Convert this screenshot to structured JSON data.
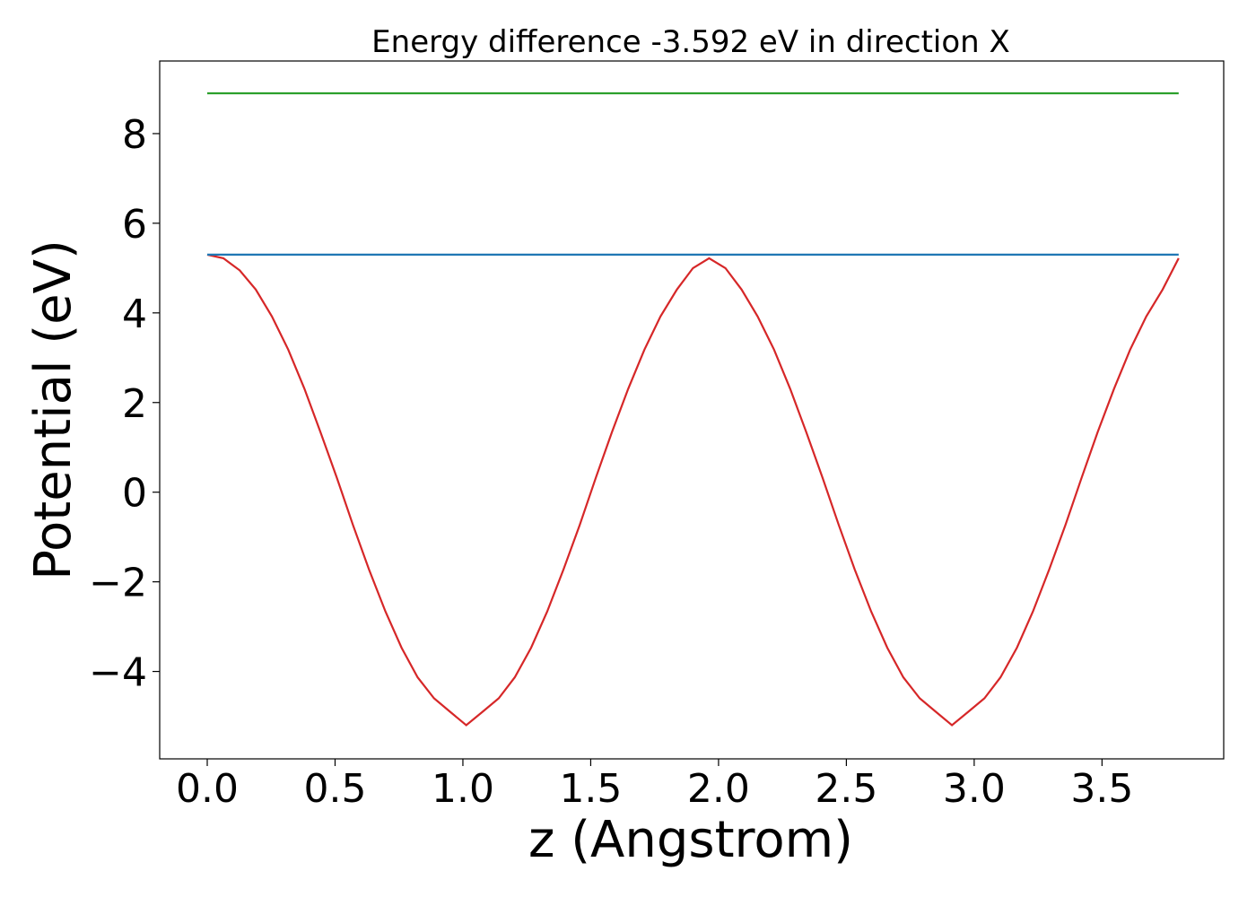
{
  "chart_data": {
    "type": "line",
    "title": "Energy difference -3.592 eV in direction X",
    "xlabel": "z (Angstrom)",
    "ylabel": "Potential (eV)",
    "xlim": [
      -0.186,
      3.976
    ],
    "ylim": [
      -5.95,
      9.62
    ],
    "xticks": [
      0.0,
      0.5,
      1.0,
      1.5,
      2.0,
      2.5,
      3.0,
      3.5
    ],
    "xtick_labels": [
      "0.0",
      "0.5",
      "1.0",
      "1.5",
      "2.0",
      "2.5",
      "3.0",
      "3.5"
    ],
    "yticks": [
      -4,
      -2,
      0,
      2,
      4,
      6,
      8
    ],
    "ytick_labels": [
      "−4",
      "−2",
      "0",
      "2",
      "4",
      "6",
      "8"
    ],
    "grid": false,
    "series": [
      {
        "color": "#d62728",
        "x": [
          0.0,
          0.063,
          0.127,
          0.19,
          0.253,
          0.317,
          0.38,
          0.443,
          0.507,
          0.57,
          0.633,
          0.697,
          0.76,
          0.823,
          0.887,
          0.95,
          1.013,
          1.077,
          1.14,
          1.203,
          1.267,
          1.33,
          1.393,
          1.457,
          1.52,
          1.583,
          1.647,
          1.71,
          1.773,
          1.837,
          1.9,
          1.963,
          2.027,
          2.09,
          2.153,
          2.217,
          2.28,
          2.343,
          2.407,
          2.47,
          2.533,
          2.597,
          2.66,
          2.723,
          2.787,
          2.85,
          2.913,
          2.977,
          3.04,
          3.103,
          3.167,
          3.23,
          3.293,
          3.357,
          3.42,
          3.483,
          3.547,
          3.61,
          3.673,
          3.737,
          3.8
        ],
        "y": [
          5.3,
          5.22,
          4.95,
          4.52,
          3.92,
          3.18,
          2.31,
          1.34,
          0.32,
          -0.73,
          -1.73,
          -2.66,
          -3.47,
          -4.13,
          -4.6,
          -4.9,
          -5.2,
          -4.9,
          -4.6,
          -4.13,
          -3.47,
          -2.66,
          -1.73,
          -0.73,
          0.32,
          1.34,
          2.31,
          3.18,
          3.92,
          4.52,
          5.0,
          5.22,
          5.0,
          4.52,
          3.92,
          3.18,
          2.31,
          1.34,
          0.32,
          -0.73,
          -1.73,
          -2.66,
          -3.47,
          -4.13,
          -4.6,
          -4.9,
          -5.2,
          -4.9,
          -4.6,
          -4.13,
          -3.47,
          -2.66,
          -1.73,
          -0.73,
          0.32,
          1.34,
          2.31,
          3.18,
          3.92,
          4.52,
          5.22
        ]
      },
      {
        "color": "#1f77b4",
        "x": [
          0.0,
          3.8
        ],
        "y": [
          5.3,
          5.3
        ]
      },
      {
        "color": "#2ca02c",
        "x": [
          0.0,
          3.8
        ],
        "y": [
          8.9,
          8.9
        ]
      }
    ]
  }
}
